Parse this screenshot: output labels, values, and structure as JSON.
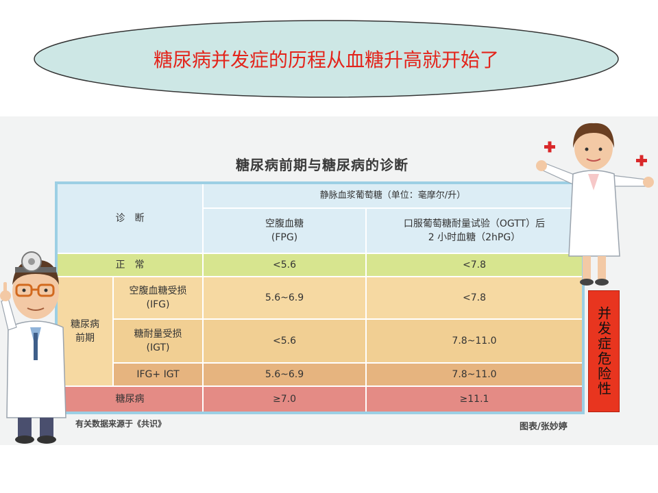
{
  "slide": {
    "title": "糖尿病并发症的历程从血糖升高就开始了"
  },
  "table": {
    "title": "糖尿病前期与糖尿病的诊断",
    "header": {
      "diagnosis": "诊　断",
      "group": "静脉血浆葡萄糖（单位：毫摩尔/升）",
      "col_fpg_line1": "空腹血糖",
      "col_fpg_line2": "(FPG)",
      "col_ogtt_line1": "口服葡萄糖耐量试验（OGTT）后",
      "col_ogtt_line2": "2 小时血糖（2hPG）"
    },
    "rows": [
      {
        "label": "正　常",
        "fpg": "<5.6",
        "ogtt": "<7.8"
      },
      {
        "label_line1": "空腹血糖受损",
        "label_line2": "(IFG)",
        "fpg": "5.6~6.9",
        "ogtt": "<7.8"
      },
      {
        "label_line1": "糖耐量受损",
        "label_line2": "(IGT)",
        "fpg": "<5.6",
        "ogtt": "7.8~11.0"
      },
      {
        "label": "IFG+ IGT",
        "fpg": "5.6~6.9",
        "ogtt": "7.8~11.0"
      },
      {
        "label": "糖尿病",
        "fpg": "≥7.0",
        "ogtt": "≥11.1"
      }
    ],
    "prediabetes_group_line1": "糖尿病",
    "prediabetes_group_line2": "前期",
    "footer_left": "有关数据来源于《共识》",
    "footer_right": "图表/张妙婷"
  },
  "side_box": {
    "text": "并发症危险性"
  },
  "colors": {
    "title": "#e3241b",
    "ellipse_fill": "#cde7e5",
    "normal_row": "#d7e58f",
    "prediabetes_rows": "#f6d9a2",
    "diabetes_row": "#e48b85",
    "risk_box": "#e8351f"
  }
}
